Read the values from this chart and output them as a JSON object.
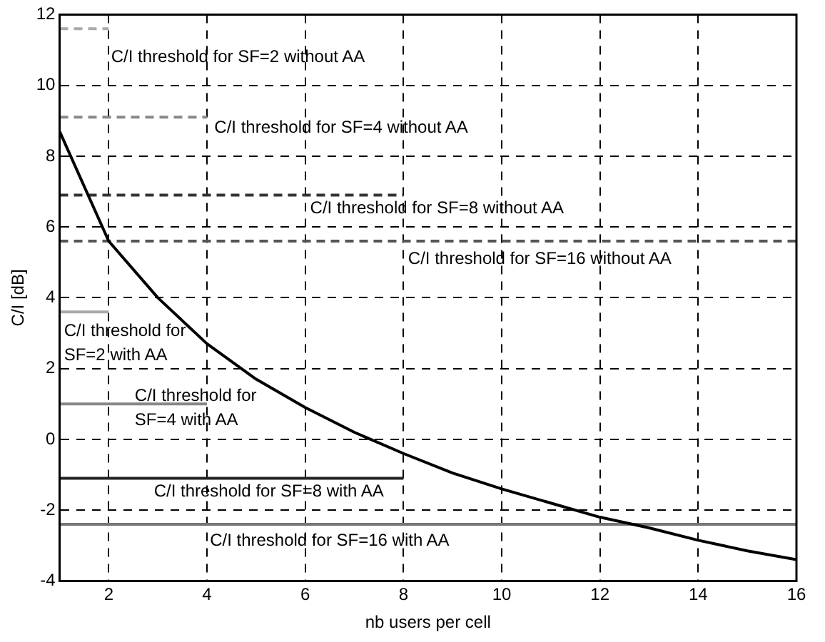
{
  "chart_data": {
    "type": "line",
    "xlabel": "nb users per cell",
    "ylabel": "C/I [dB]",
    "xlim": [
      1,
      16
    ],
    "xticks": [
      2,
      4,
      6,
      8,
      10,
      12,
      14,
      16
    ],
    "ylim": [
      -4,
      12
    ],
    "yticks": [
      -4,
      -2,
      0,
      2,
      4,
      6,
      8,
      10,
      12
    ],
    "grid": true,
    "legend": false,
    "marker": "none",
    "x": [
      1,
      2,
      3,
      4,
      5,
      6,
      7,
      8,
      9,
      10,
      11,
      12,
      13,
      14,
      15,
      16
    ],
    "series": [
      {
        "color": "#000000",
        "line_style": "solid",
        "values": [
          8.7,
          5.6,
          4.0,
          2.7,
          1.7,
          0.9,
          0.2,
          -0.4,
          -0.95,
          -1.4,
          -1.8,
          -2.2,
          -2.5,
          -2.85,
          -3.15,
          -3.4
        ]
      },
      {
        "color": "#aaaaaa",
        "line_style": "dashed",
        "x": [
          1,
          2
        ],
        "values": [
          11.6,
          11.6
        ]
      },
      {
        "color": "#888888",
        "line_style": "dashed",
        "x": [
          1,
          4
        ],
        "values": [
          9.1,
          9.1
        ]
      },
      {
        "color": "#333333",
        "line_style": "dashed",
        "x": [
          1,
          8
        ],
        "values": [
          6.9,
          6.9
        ]
      },
      {
        "color": "#555555",
        "line_style": "dashed",
        "x": [
          1,
          16
        ],
        "values": [
          5.6,
          5.6
        ]
      },
      {
        "color": "#aaaaaa",
        "line_style": "solid",
        "x": [
          1,
          2
        ],
        "values": [
          3.6,
          3.6
        ]
      },
      {
        "color": "#888888",
        "line_style": "solid",
        "x": [
          1,
          4
        ],
        "values": [
          1.0,
          1.0
        ]
      },
      {
        "color": "#222222",
        "line_style": "solid",
        "x": [
          1,
          8
        ],
        "values": [
          -1.1,
          -1.1
        ]
      },
      {
        "color": "#777777",
        "line_style": "solid",
        "x": [
          1,
          16
        ],
        "values": [
          -2.4,
          -2.4
        ]
      }
    ],
    "annotations": [
      "C/I threshold for SF=2 without AA",
      "C/I threshold for SF=4 without AA",
      "C/I threshold for SF=8 without AA",
      "C/I threshold for SF=16 without AA",
      "C/I threshold for\nSF=2 with AA",
      "C/I threshold for\nSF=4 with AA",
      "C/I threshold for SF=8 with AA",
      "C/I threshold for SF=16 with AA"
    ]
  }
}
